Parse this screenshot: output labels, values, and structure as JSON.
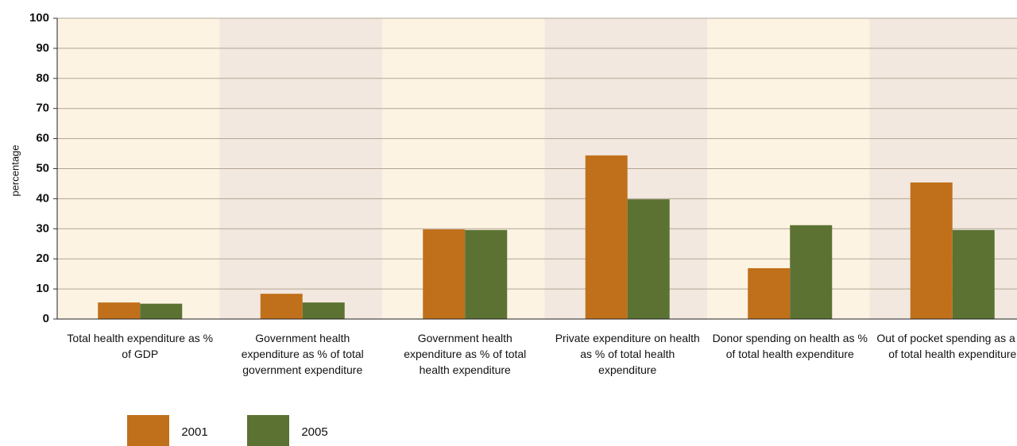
{
  "chart_data": {
    "type": "bar",
    "y_axis_label": "percentage",
    "categories": [
      "Total health expenditure as % of GDP",
      "Government health expenditure as % of total government expenditure",
      "Government health expenditure as % of total health expenditure",
      "Private expenditure on health as % of total health expenditure",
      "Donor spending on health as % of total health expenditure",
      "Out of pocket spending as a % of total health expenditure"
    ],
    "series": [
      {
        "name": "2001",
        "color": "#c0701a",
        "values": [
          5.5,
          8.4,
          29.8,
          54.4,
          16.9,
          45.4
        ]
      },
      {
        "name": "2005",
        "color": "#5b7233",
        "values": [
          5.1,
          5.5,
          29.6,
          39.8,
          31.2,
          29.6
        ]
      }
    ],
    "ylim": [
      0,
      100
    ],
    "yticks": [
      0,
      10,
      20,
      30,
      40,
      50,
      60,
      70,
      80,
      90,
      100
    ],
    "grid": true,
    "band_colors": [
      "#fdf3e2",
      "#f3e8df"
    ]
  }
}
